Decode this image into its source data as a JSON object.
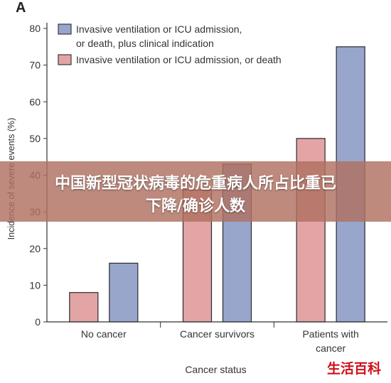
{
  "panel_label": "A",
  "banner": {
    "line1": "中国新型冠状病毒的危重病人所占比重已",
    "line2": "下降/确诊人数"
  },
  "watermark": "生活百科",
  "colors": {
    "series_blue": "#98a6cc",
    "series_red": "#e3a4a6",
    "axis": "#333333"
  },
  "chart_data": {
    "type": "bar",
    "xlabel": "Cancer status",
    "ylabel": "Incidence of severe events (%)",
    "ylim": [
      0,
      80
    ],
    "yticks": [
      "0",
      "10",
      "20",
      "30",
      "40",
      "50",
      "60",
      "70",
      "80"
    ],
    "categories": [
      {
        "lines": [
          "No cancer"
        ]
      },
      {
        "lines": [
          "Cancer survivors"
        ]
      },
      {
        "lines": [
          "Patients with",
          "cancer"
        ]
      }
    ],
    "legend_position": "top-left",
    "series": [
      {
        "name_lines": [
          "Invasive ventilation or ICU admission,",
          "or death, plus clinical indication"
        ],
        "color": "#98a6cc",
        "values": [
          16,
          43,
          75
        ]
      },
      {
        "name_lines": [
          "Invasive ventilation or ICU admission, or death"
        ],
        "color": "#e3a4a6",
        "values": [
          8,
          36,
          50
        ]
      }
    ]
  }
}
